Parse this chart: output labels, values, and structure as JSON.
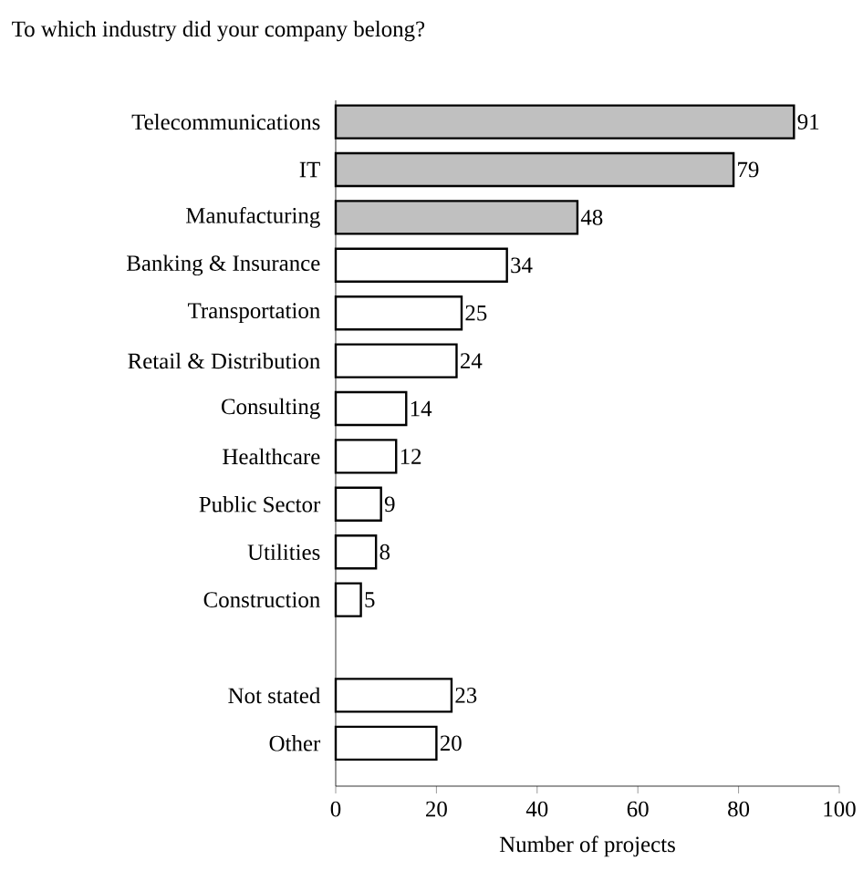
{
  "chart_data": {
    "type": "bar",
    "orientation": "horizontal",
    "title": "To which industry did your company belong?",
    "xlabel": "Number of projects",
    "categories": [
      "Telecommunications",
      "IT",
      "Manufacturing",
      "Banking & Insurance",
      "Transportation",
      "Retail & Distribution",
      "Consulting",
      "Healthcare",
      "Public Sector",
      "Utilities",
      "Construction",
      null,
      "Not stated",
      "Other"
    ],
    "values": [
      91,
      79,
      48,
      34,
      25,
      24,
      14,
      12,
      9,
      8,
      5,
      null,
      23,
      20
    ],
    "colors": [
      "#c0c0c0",
      "#c0c0c0",
      "#c0c0c0",
      "#ffffff",
      "#ffffff",
      "#ffffff",
      "#ffffff",
      "#ffffff",
      "#ffffff",
      "#ffffff",
      "#ffffff",
      null,
      "#ffffff",
      "#ffffff"
    ],
    "xlim": [
      0,
      100
    ],
    "xticks": [
      0,
      20,
      40,
      60,
      80,
      100
    ],
    "data_labels": true
  }
}
